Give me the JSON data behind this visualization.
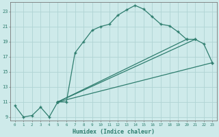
{
  "title": "",
  "xlabel": "Humidex (Indice chaleur)",
  "bg_color": "#ceeaea",
  "grid_color": "#b0d4d4",
  "line_color": "#2e7d6e",
  "xlim": [
    -0.5,
    23.5
  ],
  "ylim": [
    8.5,
    24.2
  ],
  "xticks": [
    0,
    1,
    2,
    3,
    4,
    5,
    6,
    7,
    8,
    9,
    10,
    11,
    12,
    13,
    14,
    15,
    16,
    17,
    18,
    19,
    20,
    21,
    22,
    23
  ],
  "yticks": [
    9,
    11,
    13,
    15,
    17,
    19,
    21,
    23
  ],
  "line1_x": [
    0,
    1,
    2,
    3,
    4,
    5,
    6,
    7,
    8,
    9,
    10,
    11,
    12,
    13,
    14,
    15,
    16,
    17,
    18,
    19,
    20,
    21,
    22,
    23
  ],
  "line1_y": [
    10.5,
    9.0,
    9.2,
    10.3,
    9.0,
    11.0,
    11.0,
    17.5,
    19.0,
    20.5,
    21.0,
    21.3,
    22.5,
    23.2,
    23.8,
    23.3,
    22.3,
    21.3,
    21.1,
    20.3,
    19.3,
    19.3,
    18.7,
    16.2
  ],
  "line2_x": [
    5,
    23
  ],
  "line2_y": [
    11.0,
    16.2
  ],
  "line3_x": [
    5,
    21
  ],
  "line3_y": [
    11.0,
    19.3
  ],
  "line4_x": [
    5,
    20
  ],
  "line4_y": [
    11.0,
    19.3
  ]
}
